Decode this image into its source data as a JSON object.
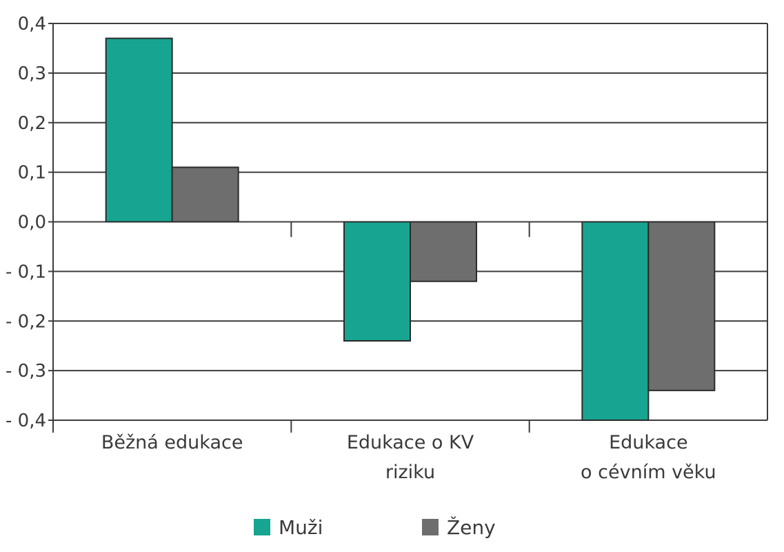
{
  "chart_data": {
    "type": "bar",
    "categories": [
      [
        "Běžná edukace"
      ],
      [
        "Edukace o KV",
        "riziku"
      ],
      [
        "Edukace",
        "o cévním věku"
      ]
    ],
    "series": [
      {
        "name": "Muži",
        "color": "#17a592",
        "values": [
          0.37,
          -0.24,
          -0.4
        ]
      },
      {
        "name": "Ženy",
        "color": "#6e6e6e",
        "values": [
          0.11,
          -0.12,
          -0.34
        ]
      }
    ],
    "ylim": [
      -0.4,
      0.4
    ],
    "yticks": [
      {
        "value": 0.4,
        "label": "0,4"
      },
      {
        "value": 0.3,
        "label": "0,3"
      },
      {
        "value": 0.2,
        "label": "0,2"
      },
      {
        "value": 0.1,
        "label": "0,1"
      },
      {
        "value": 0.0,
        "label": "0,0"
      },
      {
        "value": -0.1,
        "label": "- 0,1"
      },
      {
        "value": -0.2,
        "label": "- 0,2"
      },
      {
        "value": -0.3,
        "label": "- 0,3"
      },
      {
        "value": -0.4,
        "label": "- 0,4"
      }
    ],
    "grid": true,
    "legend_position": "bottom-center"
  }
}
